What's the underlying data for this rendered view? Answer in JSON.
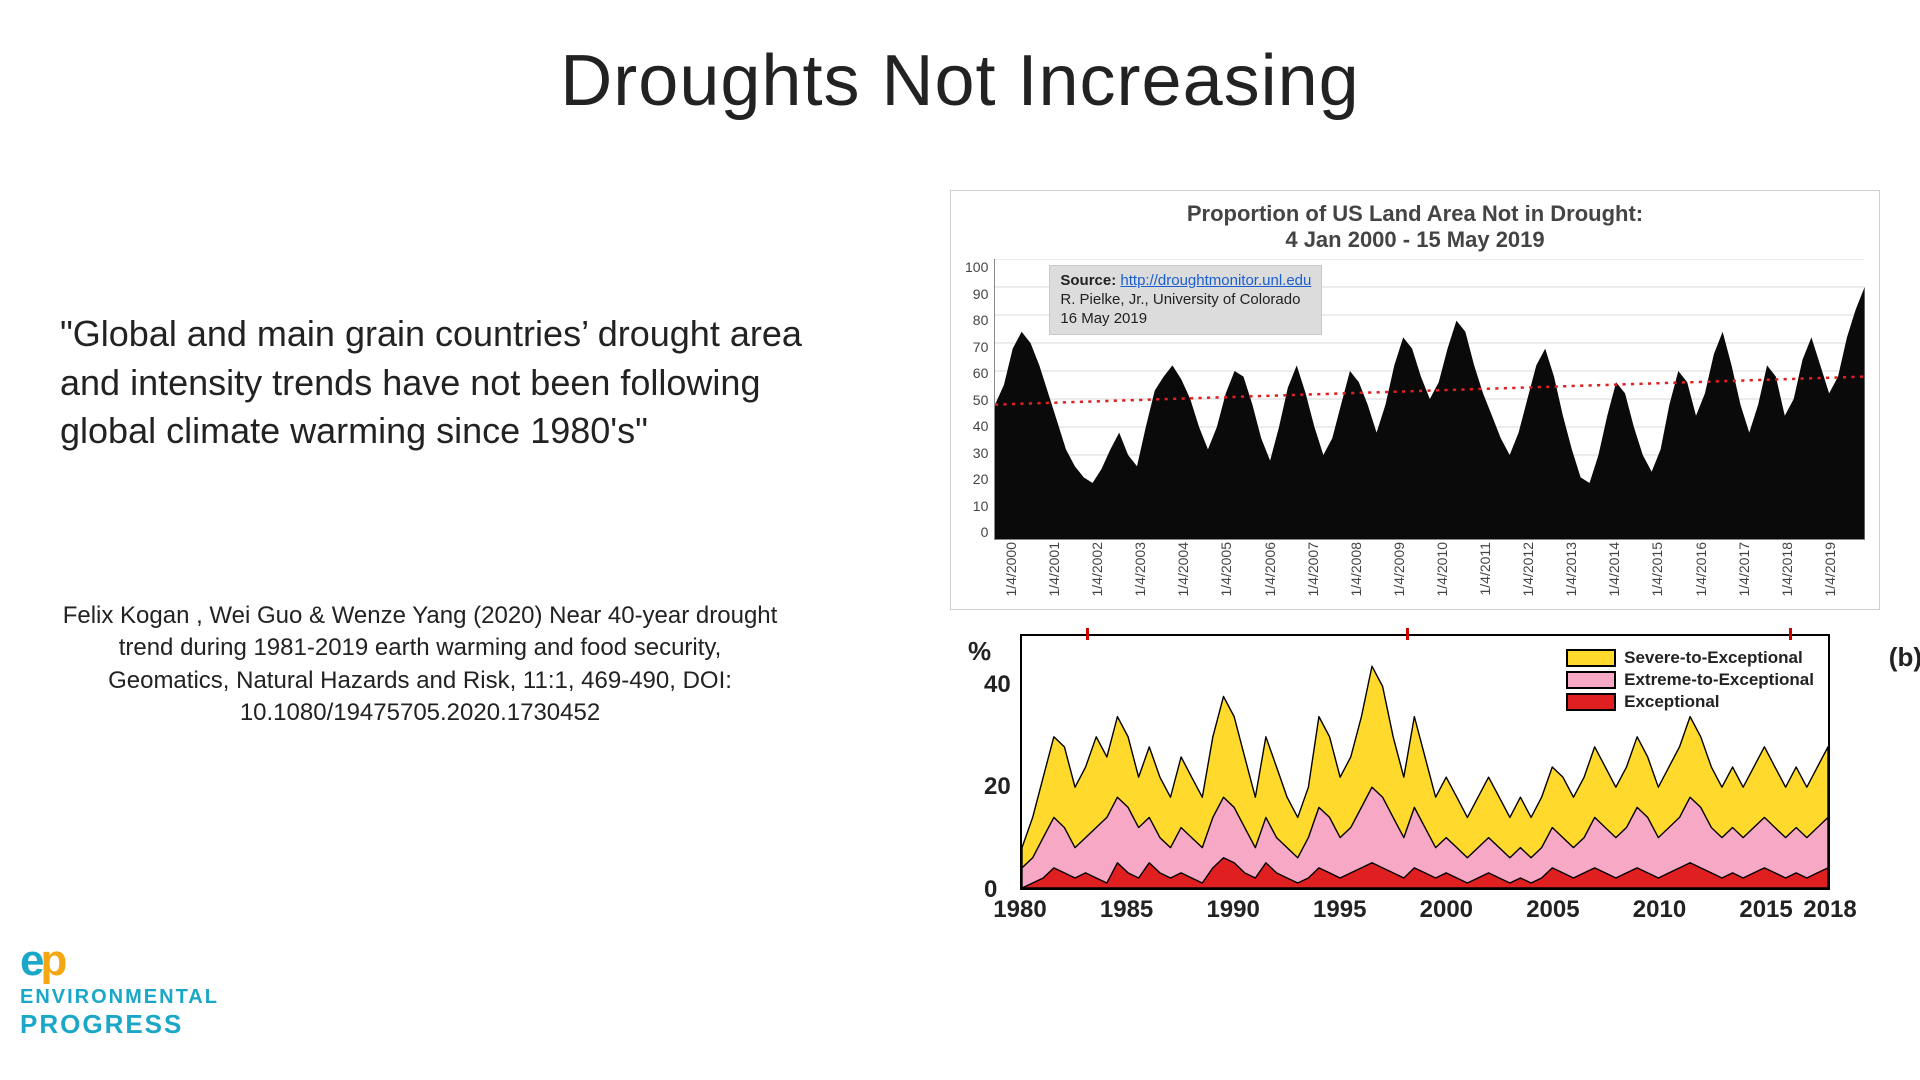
{
  "title": "Droughts Not Increasing",
  "title_fontsize": 72,
  "quote": "\"Global and main grain countries’ drought area and intensity trends have not been following global climate warming since 1980's\"",
  "quote_fontsize": 36,
  "citation": "Felix Kogan , Wei Guo & Wenze Yang (2020) Near 40-year drought trend during 1981-2019 earth warming and food security, Geomatics, Natural Hazards and Risk, 11:1, 469-490, DOI: 10.1080/19475705.2020.1730452",
  "citation_fontsize": 24,
  "logo": {
    "line1": "ENVIRONMENTAL",
    "line2": "PROGRESS",
    "color": "#1aa7c8",
    "accent": "#f3a712"
  },
  "chart1": {
    "type": "area",
    "title": "Proportion of US Land Area Not in Drought:\n4 Jan 2000 - 15 May 2019",
    "title_fontsize": 22,
    "background_color": "#ffffff",
    "border_color": "#cfcfcf",
    "series_color": "#0a0a0a",
    "trend_color": "#e02020",
    "trend_dash": "3,5",
    "trend_width": 2.5,
    "grid_color": "#d8d8d8",
    "ylim": [
      0,
      100
    ],
    "yticks": [
      0,
      10,
      20,
      30,
      40,
      50,
      60,
      70,
      80,
      90,
      100
    ],
    "xticks": [
      "1/4/2000",
      "1/4/2001",
      "1/4/2002",
      "1/4/2003",
      "1/4/2004",
      "1/4/2005",
      "1/4/2006",
      "1/4/2007",
      "1/4/2008",
      "1/4/2009",
      "1/4/2010",
      "1/4/2011",
      "1/4/2012",
      "1/4/2013",
      "1/4/2014",
      "1/4/2015",
      "1/4/2016",
      "1/4/2017",
      "1/4/2018",
      "1/4/2019"
    ],
    "values": [
      48,
      55,
      68,
      74,
      70,
      62,
      52,
      42,
      32,
      26,
      22,
      20,
      25,
      32,
      38,
      30,
      26,
      40,
      53,
      58,
      62,
      57,
      50,
      40,
      32,
      40,
      52,
      60,
      58,
      48,
      36,
      28,
      40,
      54,
      62,
      52,
      40,
      30,
      36,
      48,
      60,
      56,
      48,
      38,
      48,
      62,
      72,
      68,
      58,
      50,
      56,
      68,
      78,
      74,
      62,
      52,
      44,
      36,
      30,
      38,
      50,
      62,
      68,
      58,
      44,
      32,
      22,
      20,
      30,
      44,
      56,
      52,
      40,
      30,
      24,
      32,
      48,
      60,
      56,
      44,
      52,
      66,
      74,
      62,
      48,
      38,
      48,
      62,
      58,
      44,
      50,
      64,
      72,
      62,
      52,
      58,
      72,
      82,
      90
    ],
    "trend": {
      "y_start": 48,
      "y_end": 58
    },
    "sourcebox": {
      "label": "Source:",
      "url_text": "http://droughtmonitor.unl.edu",
      "line2": "R. Pielke, Jr., University of Colorado",
      "line3": "16 May 2019"
    }
  },
  "chart2": {
    "type": "stacked-area",
    "panel_label": "(b)",
    "ylabel": "%",
    "ylim": [
      0,
      50
    ],
    "yticks": [
      0,
      20,
      40
    ],
    "xlim": [
      1980,
      2018
    ],
    "xticks": [
      1980,
      1985,
      1990,
      1995,
      2000,
      2005,
      2010,
      2015,
      2018
    ],
    "top_marks": [
      1983,
      1998,
      2016
    ],
    "background_color": "#ffffff",
    "outline_width": 2,
    "legend": [
      {
        "label": "Severe-to-Exceptional",
        "color": "#ffd92b"
      },
      {
        "label": "Extreme-to-Exceptional",
        "color": "#f7a8c4"
      },
      {
        "label": "Exceptional",
        "color": "#e02020"
      }
    ],
    "series": {
      "exceptional": [
        0,
        1,
        2,
        4,
        3,
        2,
        3,
        2,
        1,
        5,
        3,
        2,
        5,
        3,
        2,
        3,
        2,
        1,
        4,
        6,
        5,
        3,
        2,
        5,
        3,
        2,
        1,
        2,
        4,
        3,
        2,
        3,
        4,
        5,
        4,
        3,
        2,
        4,
        3,
        2,
        3,
        2,
        1,
        2,
        3,
        2,
        1,
        2,
        1,
        2,
        4,
        3,
        2,
        3,
        4,
        3,
        2,
        3,
        4,
        3,
        2,
        3,
        4,
        5,
        4,
        3,
        2,
        3,
        2,
        3,
        4,
        3,
        2,
        3,
        2,
        3,
        4
      ],
      "extreme": [
        4,
        6,
        10,
        14,
        12,
        8,
        10,
        12,
        14,
        18,
        16,
        12,
        14,
        10,
        8,
        12,
        10,
        8,
        14,
        18,
        16,
        12,
        8,
        14,
        10,
        8,
        6,
        10,
        16,
        14,
        10,
        12,
        16,
        20,
        18,
        14,
        10,
        16,
        12,
        8,
        10,
        8,
        6,
        8,
        10,
        8,
        6,
        8,
        6,
        8,
        12,
        10,
        8,
        10,
        14,
        12,
        10,
        12,
        16,
        14,
        10,
        12,
        14,
        18,
        16,
        12,
        10,
        12,
        10,
        12,
        14,
        12,
        10,
        12,
        10,
        12,
        14
      ],
      "severe": [
        8,
        14,
        22,
        30,
        28,
        20,
        24,
        30,
        26,
        34,
        30,
        22,
        28,
        22,
        18,
        26,
        22,
        18,
        30,
        38,
        34,
        26,
        18,
        30,
        24,
        18,
        14,
        20,
        34,
        30,
        22,
        26,
        34,
        44,
        40,
        30,
        22,
        34,
        26,
        18,
        22,
        18,
        14,
        18,
        22,
        18,
        14,
        18,
        14,
        18,
        24,
        22,
        18,
        22,
        28,
        24,
        20,
        24,
        30,
        26,
        20,
        24,
        28,
        34,
        30,
        24,
        20,
        24,
        20,
        24,
        28,
        24,
        20,
        24,
        20,
        24,
        28
      ]
    },
    "colors": {
      "exceptional": "#e02020",
      "extreme": "#f7a8c4",
      "severe": "#ffd92b",
      "outline": "#000000"
    }
  }
}
